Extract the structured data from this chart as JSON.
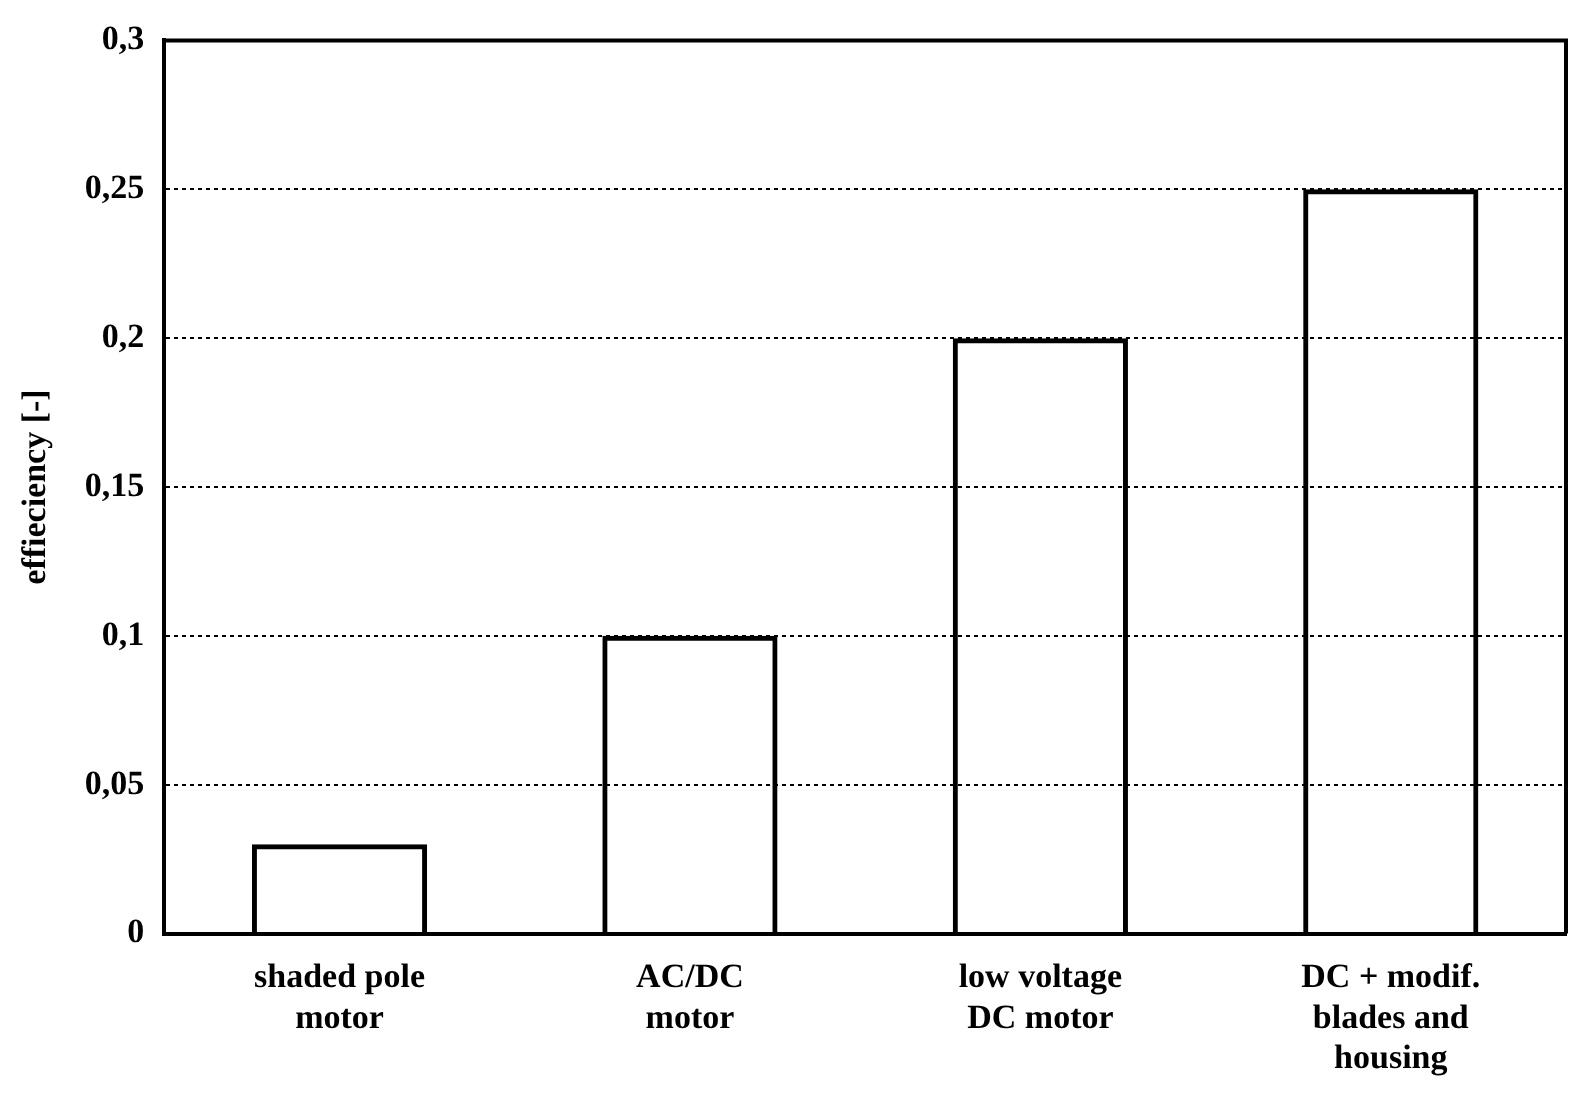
{
  "chart_data": {
    "type": "bar",
    "ylabel": "effieciency [-]",
    "categories": [
      "shaded pole motor",
      "AC/DC motor",
      "low voltage DC motor",
      "DC + modif. blades and housing"
    ],
    "values": [
      0.03,
      0.1,
      0.2,
      0.25
    ],
    "color": "#000000",
    "ylim": [
      0,
      0.3
    ],
    "yticks": [
      {
        "value": 0,
        "label": "0"
      },
      {
        "value": 0.05,
        "label": "0,05"
      },
      {
        "value": 0.1,
        "label": "0,1"
      },
      {
        "value": 0.15,
        "label": "0,15"
      },
      {
        "value": 0.2,
        "label": "0,2"
      },
      {
        "value": 0.25,
        "label": "0,25"
      },
      {
        "value": 0.3,
        "label": "0,3"
      }
    ],
    "grid": "y",
    "legend": false
  }
}
